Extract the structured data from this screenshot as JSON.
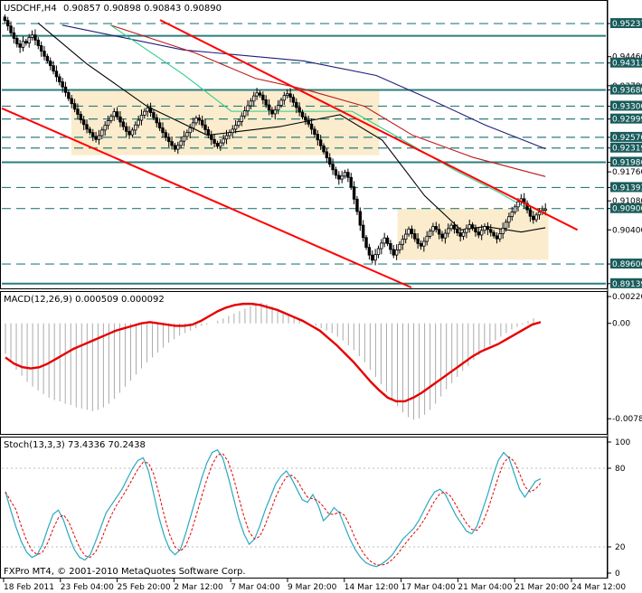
{
  "chart_data": [
    {
      "type": "candlestick",
      "title": "USDCHF,H4",
      "ohlc_text": "0.90857 0.90898 0.90843 0.90890",
      "current_price": "0.90890",
      "y_ticks": [
        "0.95237",
        "0.94460",
        "0.94312",
        "0.93780",
        "0.93680",
        "0.93300",
        "0.92999",
        "0.92570",
        "0.92319",
        "0.91986",
        "0.91760",
        "0.91393",
        "0.91080",
        "0.90900",
        "0.90400",
        "0.89600",
        "0.89139"
      ],
      "ylim": [
        0.8905,
        0.9545
      ],
      "horizontal_levels": [
        {
          "value": 0.95237,
          "style": "dashed",
          "label": "0.95237"
        },
        {
          "value": 0.9495,
          "style": "solid"
        },
        {
          "value": 0.94312,
          "style": "dashed",
          "label": "0.94312"
        },
        {
          "value": 0.9368,
          "style": "solid",
          "label": "0.93680"
        },
        {
          "value": 0.933,
          "style": "dashed",
          "label": "0.93300"
        },
        {
          "value": 0.92999,
          "style": "dashed",
          "label": "0.92999"
        },
        {
          "value": 0.9257,
          "style": "dashed",
          "label": "0.92570"
        },
        {
          "value": 0.92319,
          "style": "dashed",
          "label": "0.92319"
        },
        {
          "value": 0.91986,
          "style": "solid",
          "label": "0.91986"
        },
        {
          "value": 0.91393,
          "style": "dashed",
          "label": "0.91393"
        },
        {
          "value": 0.909,
          "style": "dashed",
          "label": "0.90900"
        },
        {
          "value": 0.896,
          "style": "dashed",
          "label": "0.89600"
        },
        {
          "value": 0.89139,
          "style": "solid",
          "label": "0.89139"
        }
      ],
      "close_series": [
        0.9531,
        0.9518,
        0.9502,
        0.9489,
        0.9476,
        0.9468,
        0.9482,
        0.9478,
        0.9491,
        0.9497,
        0.9485,
        0.9472,
        0.9459,
        0.9447,
        0.9436,
        0.9425,
        0.9412,
        0.9399,
        0.9387,
        0.9375,
        0.9362,
        0.9348,
        0.9336,
        0.9323,
        0.9311,
        0.9298,
        0.9287,
        0.9276,
        0.9268,
        0.9259,
        0.9252,
        0.9261,
        0.9274,
        0.9285,
        0.9296,
        0.9306,
        0.9317,
        0.9305,
        0.9293,
        0.9282,
        0.9271,
        0.9263,
        0.9274,
        0.9286,
        0.9297,
        0.9309,
        0.9318,
        0.9326,
        0.9315,
        0.9303,
        0.9291,
        0.9279,
        0.9268,
        0.9257,
        0.9247,
        0.9238,
        0.9229,
        0.9238,
        0.9248,
        0.9259,
        0.9268,
        0.9279,
        0.9291,
        0.9302,
        0.9297,
        0.9286,
        0.9275,
        0.9263,
        0.9252,
        0.9243,
        0.9236,
        0.9244,
        0.9253,
        0.9261,
        0.9268,
        0.9276,
        0.9285,
        0.9294,
        0.9307,
        0.9319,
        0.9331,
        0.9342,
        0.9354,
        0.9361,
        0.9356,
        0.9345,
        0.9333,
        0.9321,
        0.9312,
        0.9321,
        0.9332,
        0.9344,
        0.9355,
        0.9359,
        0.9351,
        0.9339,
        0.9327,
        0.9316,
        0.9305,
        0.9297,
        0.9288,
        0.9276,
        0.9264,
        0.9251,
        0.9237,
        0.9223,
        0.9209,
        0.9194,
        0.9181,
        0.9168,
        0.9159,
        0.9166,
        0.9175,
        0.9163,
        0.9141,
        0.9112,
        0.9083,
        0.9051,
        0.9022,
        0.8999,
        0.8981,
        0.8969,
        0.8982,
        0.8996,
        0.9009,
        0.9021,
        0.9008,
        0.8994,
        0.8981,
        0.8993,
        0.9006,
        0.9018,
        0.903,
        0.9042,
        0.9031,
        0.9019,
        0.9008,
        0.9002,
        0.9013,
        0.9025,
        0.9037,
        0.9048,
        0.9041,
        0.903,
        0.9021,
        0.9032,
        0.9043,
        0.9051,
        0.9042,
        0.9033,
        0.9025,
        0.9034,
        0.9043,
        0.9052,
        0.9044,
        0.9035,
        0.9028,
        0.9039,
        0.9048,
        0.9041,
        0.9034,
        0.9026,
        0.9019,
        0.9031,
        0.9044,
        0.9058,
        0.9071,
        0.9082,
        0.9094,
        0.9106,
        0.9113,
        0.9102,
        0.9087,
        0.9072,
        0.9064,
        0.9075,
        0.9082,
        0.9086,
        0.9089
      ],
      "overlay_lines": [
        {
          "color": "#ff0000",
          "width": 2,
          "points": [
            [
              0.262,
              0.9532
            ],
            [
              0.953,
              0.904
            ]
          ]
        },
        {
          "color": "#ff0000",
          "width": 2,
          "points": [
            [
              0.0,
              0.9325
            ],
            [
              0.678,
              0.8905
            ]
          ]
        }
      ],
      "moving_averages": [
        {
          "color": "#1e1e7a",
          "points": [
            [
              0.1,
              0.952
            ],
            [
              0.3,
              0.9462
            ],
            [
              0.5,
              0.9436
            ],
            [
              0.62,
              0.9402
            ],
            [
              0.7,
              0.9352
            ],
            [
              0.8,
              0.9286
            ],
            [
              0.9,
              0.923
            ]
          ]
        },
        {
          "color": "#bb1a1a",
          "points": [
            [
              0.18,
              0.952
            ],
            [
              0.32,
              0.9455
            ],
            [
              0.42,
              0.9395
            ],
            [
              0.5,
              0.937
            ],
            [
              0.6,
              0.933
            ],
            [
              0.68,
              0.9262
            ],
            [
              0.78,
              0.921
            ],
            [
              0.9,
              0.9165
            ]
          ]
        },
        {
          "color": "#2bd089",
          "points": [
            [
              0.18,
              0.952
            ],
            [
              0.3,
              0.9405
            ],
            [
              0.38,
              0.9318
            ],
            [
              0.5,
              0.9318
            ],
            [
              0.58,
              0.9318
            ],
            [
              0.65,
              0.9262
            ],
            [
              0.75,
              0.918
            ],
            [
              0.82,
              0.913
            ],
            [
              0.88,
              0.9082
            ]
          ]
        },
        {
          "color": "#000000",
          "points": [
            [
              0.06,
              0.9525
            ],
            [
              0.14,
              0.943
            ],
            [
              0.24,
              0.933
            ],
            [
              0.34,
              0.9262
            ],
            [
              0.46,
              0.9282
            ],
            [
              0.56,
              0.931
            ],
            [
              0.63,
              0.925
            ],
            [
              0.7,
              0.912
            ],
            [
              0.76,
              0.904
            ],
            [
              0.8,
              0.9048
            ],
            [
              0.86,
              0.9035
            ],
            [
              0.9,
              0.9045
            ]
          ]
        }
      ],
      "highlight_boxes": [
        {
          "x0": 0.115,
          "x1": 0.625,
          "y0": 0.9366,
          "y1": 0.9215
        },
        {
          "x0": 0.655,
          "x1": 0.905,
          "y0": 0.9089,
          "y1": 0.897
        }
      ]
    },
    {
      "type": "macd",
      "title": "MACD(12,26,9) 0.000509 0.000092",
      "y_ticks": [
        "0.00220",
        "0.00",
        "-0.00783"
      ],
      "ylim": [
        -0.009,
        0.0025
      ],
      "histogram": [
        -0.0025,
        -0.0032,
        -0.0038,
        -0.0043,
        -0.0048,
        -0.0052,
        -0.0055,
        -0.0058,
        -0.0061,
        -0.0063,
        -0.0064,
        -0.0066,
        -0.0067,
        -0.0069,
        -0.007,
        -0.0071,
        -0.0072,
        -0.0071,
        -0.0069,
        -0.0066,
        -0.0062,
        -0.0057,
        -0.0052,
        -0.0047,
        -0.0042,
        -0.0037,
        -0.0032,
        -0.0028,
        -0.0024,
        -0.002,
        -0.0016,
        -0.0013,
        -0.001,
        -0.0008,
        -0.0006,
        -0.0004,
        -0.0002,
        -0.0001,
        0.0,
        0.0002,
        0.0004,
        0.0006,
        0.0008,
        0.001,
        0.0012,
        0.0014,
        0.0016,
        0.0017,
        0.0016,
        0.0014,
        0.0012,
        0.001,
        0.0008,
        0.0006,
        0.0004,
        0.0002,
        0.0,
        -0.0002,
        -0.0004,
        -0.0006,
        -0.0008,
        -0.0011,
        -0.0014,
        -0.0018,
        -0.0022,
        -0.0027,
        -0.0032,
        -0.0038,
        -0.0044,
        -0.005,
        -0.0056,
        -0.0062,
        -0.0068,
        -0.0073,
        -0.0077,
        -0.0079,
        -0.0078,
        -0.0075,
        -0.0071,
        -0.0066,
        -0.006,
        -0.0054,
        -0.0049,
        -0.0044,
        -0.0039,
        -0.0035,
        -0.003,
        -0.0026,
        -0.0022,
        -0.0018,
        -0.0014,
        -0.0011,
        -0.0008,
        -0.0005,
        -0.0003,
        -0.0001,
        0.0002,
        0.0004
      ],
      "signal": [
        -0.0028,
        -0.0033,
        -0.0036,
        -0.0037,
        -0.0036,
        -0.0033,
        -0.0029,
        -0.0025,
        -0.0021,
        -0.0018,
        -0.0015,
        -0.0012,
        -0.0009,
        -0.0006,
        -0.0004,
        -0.0002,
        0.0,
        0.0001,
        0.0,
        -0.0001,
        -0.0002,
        -0.0002,
        -0.0001,
        0.0002,
        0.0006,
        0.001,
        0.0013,
        0.0015,
        0.0016,
        0.0016,
        0.0015,
        0.0013,
        0.0011,
        0.0008,
        0.0005,
        0.0002,
        -0.0002,
        -0.0006,
        -0.0012,
        -0.0018,
        -0.0025,
        -0.0032,
        -0.004,
        -0.0048,
        -0.0055,
        -0.0061,
        -0.0064,
        -0.0064,
        -0.0061,
        -0.0057,
        -0.0052,
        -0.0047,
        -0.0042,
        -0.0037,
        -0.0032,
        -0.0027,
        -0.0023,
        -0.002,
        -0.0017,
        -0.0013,
        -0.0009,
        -0.0005,
        -0.0001,
        0.0001
      ]
    },
    {
      "type": "stochastic",
      "title": "Stoch(13,3,3) 73.4336 70.2438",
      "y_ticks": [
        "100",
        "80",
        "20",
        "0"
      ],
      "ylim": [
        0,
        100
      ],
      "main": [
        62,
        48,
        35,
        24,
        16,
        12,
        14,
        22,
        34,
        45,
        48,
        40,
        28,
        18,
        12,
        10,
        14,
        24,
        35,
        46,
        52,
        58,
        64,
        72,
        80,
        86,
        88,
        78,
        60,
        42,
        28,
        18,
        14,
        18,
        30,
        44,
        58,
        72,
        84,
        92,
        94,
        88,
        74,
        58,
        42,
        30,
        22,
        26,
        36,
        48,
        58,
        68,
        74,
        78,
        72,
        64,
        56,
        54,
        60,
        52,
        40,
        44,
        50,
        46,
        36,
        26,
        18,
        12,
        8,
        6,
        5,
        7,
        10,
        14,
        20,
        26,
        30,
        34,
        40,
        48,
        56,
        62,
        64,
        60,
        52,
        44,
        38,
        32,
        30,
        36,
        48,
        60,
        74,
        86,
        92,
        88,
        76,
        64,
        58,
        64,
        70,
        72
      ]
    }
  ],
  "x_tick_labels": [
    "18 Feb 2011",
    "23 Feb 04:00",
    "25 Feb 20:00",
    "2 Mar 12:00",
    "7 Mar 04:00",
    "9 Mar 20:00",
    "14 Mar 12:00",
    "17 Mar 04:00",
    "21 Mar 04:00",
    "21 Mar 20:00",
    "24 Mar 12:00"
  ],
  "footer_text": "FXPro MT4, © 2001-2010 MetaQuotes Software Corp.",
  "colors": {
    "candle": "#000000",
    "grid": "#2e7d7d",
    "trend": "#ff0000",
    "macd_signal": "#e60000",
    "macd_hist": "#aaaaaa",
    "stoch_main": "#2aa8c0",
    "stoch_signal": "#e60000",
    "highlight": "#fbeccd",
    "label_bg": "#1a5c5c"
  }
}
